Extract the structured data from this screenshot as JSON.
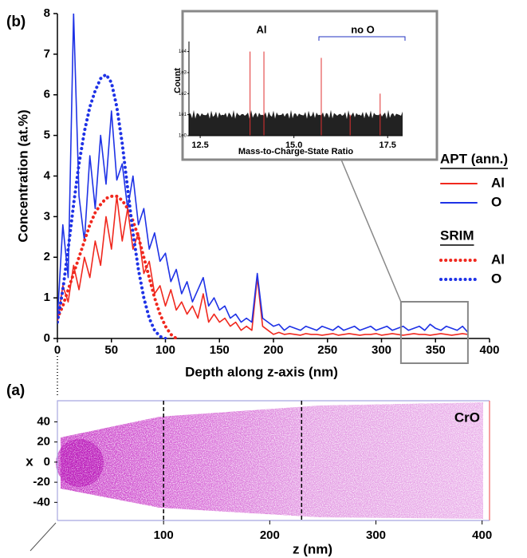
{
  "chart_data": [
    {
      "type": "line",
      "panel": "(b)",
      "xlabel": "Depth along z-axis (nm)",
      "ylabel": "Concentration (at.%)",
      "xlim": [
        0,
        400
      ],
      "xticks": [
        0,
        50,
        100,
        150,
        200,
        250,
        300,
        350,
        400
      ],
      "ylim": [
        0,
        8
      ],
      "yticks": [
        0,
        1,
        2,
        3,
        4,
        5,
        6,
        7,
        8
      ],
      "x": [
        0,
        5,
        10,
        15,
        20,
        25,
        30,
        35,
        40,
        45,
        50,
        55,
        60,
        65,
        70,
        75,
        80,
        85,
        90,
        95,
        100,
        105,
        110,
        115,
        120,
        125,
        130,
        135,
        140,
        145,
        150,
        155,
        160,
        165,
        170,
        175,
        180,
        185,
        190,
        195,
        200,
        205,
        210,
        215,
        220,
        225,
        230,
        235,
        240,
        245,
        250,
        255,
        260,
        265,
        270,
        275,
        280,
        285,
        290,
        295,
        300,
        305,
        310,
        315,
        320,
        325,
        330,
        335,
        340,
        345,
        350,
        355,
        360,
        365,
        370,
        375,
        380
      ],
      "series": [
        {
          "group": "APT (ann.)",
          "name": "Al",
          "color": "#f0281e",
          "style": "solid",
          "values": [
            0.4,
            1.3,
            0.9,
            1.8,
            1.2,
            2.0,
            1.5,
            2.4,
            1.8,
            3.0,
            2.2,
            3.5,
            2.4,
            3.2,
            2.2,
            2.6,
            1.6,
            1.9,
            1.1,
            1.3,
            0.8,
            1.2,
            0.7,
            0.9,
            0.6,
            0.8,
            0.5,
            1.1,
            0.4,
            0.6,
            0.4,
            0.5,
            0.3,
            0.4,
            0.2,
            0.3,
            0.2,
            1.5,
            0.3,
            0.2,
            0.1,
            0.15,
            0.1,
            0.12,
            0.1,
            0.08,
            0.12,
            0.1,
            0.1,
            0.08,
            0.1,
            0.12,
            0.08,
            0.1,
            0.12,
            0.1,
            0.08,
            0.1,
            0.1,
            0.12,
            0.08,
            0.1,
            0.12,
            0.1,
            0.08,
            0.1,
            0.12,
            0.1,
            0.1,
            0.08,
            0.1,
            0.12,
            0.1,
            0.08,
            0.1,
            0.12,
            0.1
          ]
        },
        {
          "group": "APT (ann.)",
          "name": "O",
          "color": "#1e32e6",
          "style": "solid",
          "values": [
            0.5,
            2.8,
            1.5,
            8,
            3.5,
            2.4,
            4.5,
            3.2,
            5,
            3.8,
            5.6,
            3.9,
            4.3,
            3.2,
            4,
            2.8,
            3.2,
            2.2,
            2.6,
            1.9,
            2.1,
            1.4,
            1.7,
            1.1,
            1.4,
            0.9,
            1.2,
            1.5,
            0.8,
            1,
            0.7,
            0.8,
            0.5,
            0.6,
            0.4,
            0.5,
            0.4,
            1.6,
            0.5,
            0.4,
            0.3,
            0.35,
            0.2,
            0.3,
            0.25,
            0.2,
            0.3,
            0.25,
            0.2,
            0.3,
            0.25,
            0.2,
            0.3,
            0.2,
            0.25,
            0.3,
            0.2,
            0.25,
            0.3,
            0.2,
            0.25,
            0.3,
            0.2,
            0.25,
            0.3,
            0.2,
            0.25,
            0.3,
            0.2,
            0.35,
            0.25,
            0.2,
            0.3,
            0.25,
            0.2,
            0.3,
            0.15
          ]
        },
        {
          "group": "SRIM",
          "name": "Al",
          "color": "#f0281e",
          "style": "dotted",
          "values": [
            0.5,
            0.8,
            1.2,
            1.6,
            2.0,
            2.4,
            2.8,
            3.1,
            3.3,
            3.45,
            3.5,
            3.5,
            3.4,
            3.2,
            2.9,
            2.5,
            2.0,
            1.5,
            1.0,
            0.6,
            0.3,
            0.1,
            0,
            null,
            null,
            null,
            null,
            null,
            null,
            null,
            null,
            null,
            null,
            null,
            null,
            null,
            null,
            null,
            null,
            null,
            null,
            null,
            null,
            null,
            null,
            null,
            null,
            null,
            null,
            null,
            null,
            null,
            null,
            null,
            null,
            null,
            null,
            null,
            null,
            null,
            null,
            null,
            null,
            null,
            null,
            null,
            null,
            null,
            null,
            null,
            null,
            null,
            null,
            null,
            null,
            null,
            null
          ]
        },
        {
          "group": "SRIM",
          "name": "O",
          "color": "#1e32e6",
          "style": "dotted",
          "values": [
            0.4,
            1.2,
            2.2,
            3.3,
            4.3,
            5.1,
            5.7,
            6.1,
            6.4,
            6.5,
            6.3,
            5.7,
            4.8,
            3.7,
            2.6,
            1.7,
            1.0,
            0.5,
            0.2,
            0.05,
            0,
            null,
            null,
            null,
            null,
            null,
            null,
            null,
            null,
            null,
            null,
            null,
            null,
            null,
            null,
            null,
            null,
            null,
            null,
            null,
            null,
            null,
            null,
            null,
            null,
            null,
            null,
            null,
            null,
            null,
            null,
            null,
            null,
            null,
            null,
            null,
            null,
            null,
            null,
            null,
            null,
            null,
            null,
            null,
            null,
            null,
            null,
            null,
            null,
            null,
            null,
            null,
            null,
            null,
            null,
            null,
            null
          ]
        }
      ]
    },
    {
      "type": "spectrum",
      "xlabel": "Mass-to-Charge-State Ratio",
      "ylabel": "Count",
      "annotations": [
        {
          "text": "Al",
          "color": "#d02020"
        },
        {
          "text": "no O",
          "color": "#2030c0"
        }
      ],
      "xlim": [
        12.2,
        17.9
      ],
      "xticks": [
        12.5,
        {
          "value": 15,
          "label": "15.0"
        },
        17.5
      ],
      "ylim": [
        1,
        30000
      ],
      "log": true,
      "yticks": [
        {
          "value": 1,
          "label": "1e0"
        },
        {
          "value": 10,
          "label": "1e1"
        },
        {
          "value": 100,
          "label": "1e2"
        },
        {
          "value": 1000,
          "label": "1e3"
        },
        {
          "value": 10000,
          "label": "1e4"
        }
      ],
      "x": [
        13.83,
        14.2,
        15.73,
        16.5,
        17.3
      ],
      "values": [
        10000,
        10000,
        5000,
        10,
        100
      ],
      "color": "#e03030"
    },
    {
      "type": "atom-map",
      "panel": "(a)",
      "label": "CrO",
      "xlabel": "z (nm)",
      "ylabel": "x",
      "xlim": [
        0,
        404
      ],
      "xticks": [
        100,
        200,
        300,
        400
      ],
      "ylim": [
        -58,
        61
      ],
      "yticks": [
        40,
        20,
        0,
        -20,
        -40
      ],
      "vlines": [
        100,
        230
      ],
      "color": "#c832c8"
    }
  ]
}
